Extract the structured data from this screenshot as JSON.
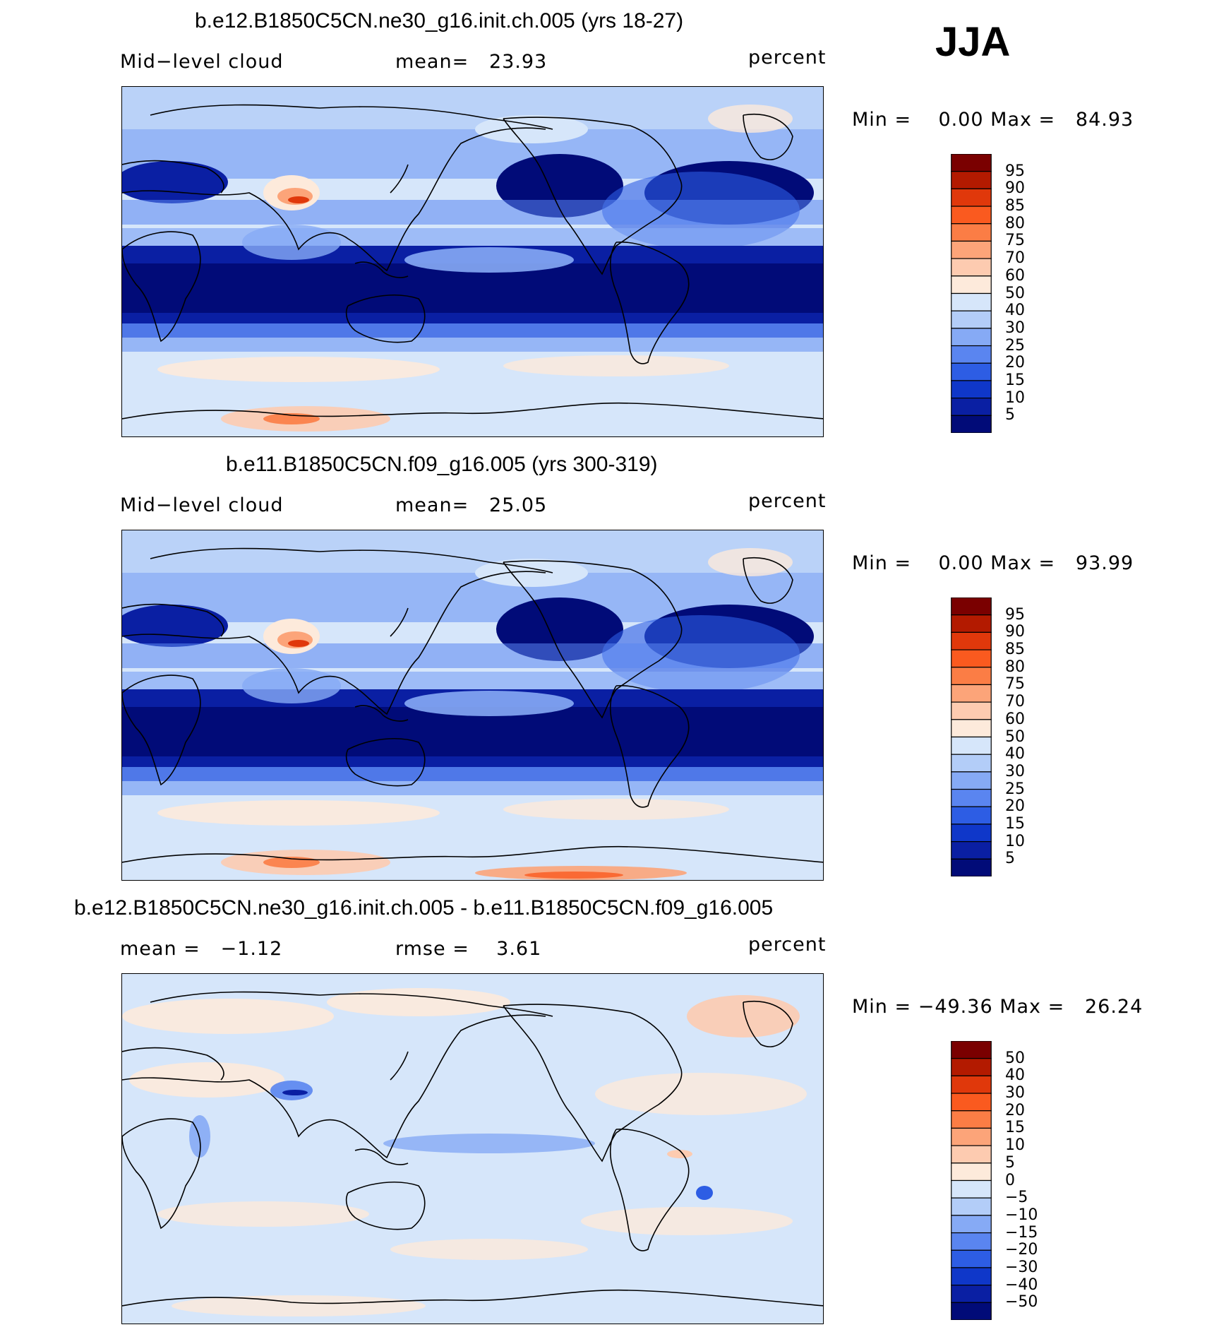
{
  "season": "JJA",
  "panels": [
    {
      "title": "b.e12.B1850C5CN.ne30_g16.init.ch.005 (yrs 18-27)",
      "left_label": "Mid−level cloud",
      "center_label": "mean=   23.93",
      "units": "percent",
      "minmax": "Min =    0.00 Max =   84.93",
      "colorbar_labels": [
        "95",
        "90",
        "85",
        "80",
        "75",
        "70",
        "60",
        "50",
        "40",
        "30",
        "25",
        "20",
        "15",
        "10",
        "5"
      ],
      "mean_value": 23.93,
      "min_value": 0.0,
      "max_value": 84.93
    },
    {
      "title": "b.e11.B1850C5CN.f09_g16.005 (yrs 300-319)",
      "left_label": "Mid−level cloud",
      "center_label": "mean=   25.05",
      "units": "percent",
      "minmax": "Min =    0.00 Max =   93.99",
      "colorbar_labels": [
        "95",
        "90",
        "85",
        "80",
        "75",
        "70",
        "60",
        "50",
        "40",
        "30",
        "25",
        "20",
        "15",
        "10",
        "5"
      ],
      "mean_value": 25.05,
      "min_value": 0.0,
      "max_value": 93.99
    },
    {
      "title": "b.e12.B1850C5CN.ne30_g16.init.ch.005 - b.e11.B1850C5CN.f09_g16.005",
      "left_label": "mean =   −1.12",
      "center_label": "rmse =    3.61",
      "units": "percent",
      "minmax": "Min = −49.36 Max =   26.24",
      "colorbar_labels": [
        "50",
        "40",
        "30",
        "20",
        "15",
        "10",
        "5",
        "0",
        "−5",
        "−10",
        "−15",
        "−20",
        "−30",
        "−40",
        "−50"
      ],
      "mean_value": -1.12,
      "rmse_value": 3.61,
      "min_value": -49.36,
      "max_value": 26.24
    }
  ],
  "colors": {
    "colorbar": [
      "#7a0000",
      "#b31a00",
      "#e0380b",
      "#fa5a1f",
      "#fb7d45",
      "#fca479",
      "#fdcbb0",
      "#fdeadb",
      "#d6e6fa",
      "#b3cdf8",
      "#86aaf5",
      "#5a85f0",
      "#2d5de4",
      "#0f37c9",
      "#0a1fa3",
      "#010b78"
    ],
    "panel_bg": [
      "#d6e6fa",
      "#d6e6fa",
      "#d6e6fa"
    ]
  }
}
